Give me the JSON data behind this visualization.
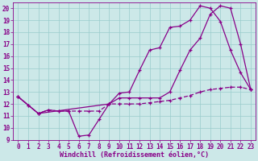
{
  "xlabel": "Windchill (Refroidissement éolien,°C)",
  "bg_color": "#cce8e8",
  "line_color": "#880088",
  "xlim": [
    -0.5,
    23.5
  ],
  "ylim": [
    9,
    20.5
  ],
  "yticks": [
    9,
    10,
    11,
    12,
    13,
    14,
    15,
    16,
    17,
    18,
    19,
    20
  ],
  "xticks": [
    0,
    1,
    2,
    3,
    4,
    5,
    6,
    7,
    8,
    9,
    10,
    11,
    12,
    13,
    14,
    15,
    16,
    17,
    18,
    19,
    20,
    21,
    22,
    23
  ],
  "line1_x": [
    0,
    1,
    2,
    3,
    4,
    5,
    6,
    7,
    8,
    9,
    10,
    11,
    12,
    13,
    14,
    15,
    16,
    17,
    18,
    19,
    20,
    21,
    22,
    23
  ],
  "line1_y": [
    12.6,
    11.9,
    11.2,
    11.5,
    11.4,
    11.4,
    9.3,
    9.4,
    10.7,
    12.0,
    12.9,
    13.0,
    14.8,
    16.5,
    16.7,
    18.4,
    18.5,
    19.0,
    20.2,
    20.0,
    18.9,
    16.5,
    14.6,
    13.2
  ],
  "line2_x": [
    0,
    2,
    9,
    10,
    11,
    12,
    13,
    14,
    15,
    16,
    17,
    18,
    19,
    20,
    21,
    22,
    23
  ],
  "line2_y": [
    12.6,
    11.2,
    12.0,
    12.5,
    12.5,
    12.5,
    12.5,
    12.5,
    13.0,
    14.8,
    16.5,
    17.5,
    19.5,
    20.2,
    20.0,
    17.0,
    13.2
  ],
  "line3_x": [
    0,
    1,
    2,
    3,
    4,
    5,
    6,
    7,
    8,
    9,
    10,
    11,
    12,
    13,
    14,
    15,
    16,
    17,
    18,
    19,
    20,
    21,
    22,
    23
  ],
  "line3_y": [
    12.6,
    11.9,
    11.2,
    11.5,
    11.4,
    11.4,
    11.4,
    11.4,
    11.4,
    12.0,
    12.0,
    12.0,
    12.0,
    12.1,
    12.2,
    12.3,
    12.5,
    12.7,
    13.0,
    13.2,
    13.3,
    13.4,
    13.4,
    13.2
  ],
  "grid_color": "#99cccc",
  "font_size": 5.5,
  "xlabel_fontsize": 6.0
}
